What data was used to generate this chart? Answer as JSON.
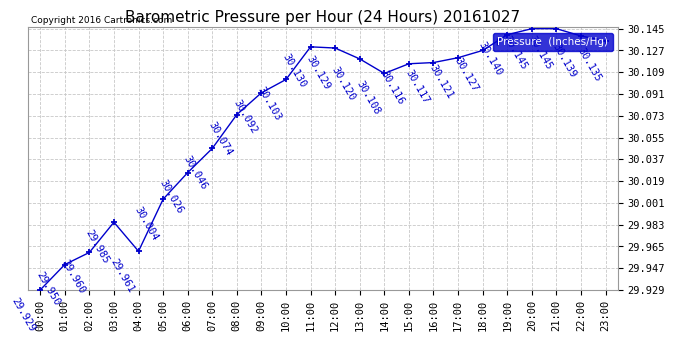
{
  "title": "Barometric Pressure per Hour (24 Hours) 20161027",
  "copyright": "Copyright 2016 Cartronics.com",
  "legend_label": "Pressure  (Inches/Hg)",
  "hours": [
    0,
    1,
    2,
    3,
    4,
    5,
    6,
    7,
    8,
    9,
    10,
    11,
    12,
    13,
    14,
    15,
    16,
    17,
    18,
    19,
    20,
    21,
    22,
    23
  ],
  "pressures": [
    29.929,
    29.95,
    29.96,
    29.985,
    29.961,
    30.004,
    30.026,
    30.046,
    30.074,
    30.092,
    30.103,
    30.13,
    30.129,
    30.12,
    30.108,
    30.116,
    30.117,
    30.121,
    30.127,
    30.14,
    30.145,
    30.145,
    30.139,
    30.135
  ],
  "ylim_min": 29.929,
  "ylim_max": 30.145,
  "yticks": [
    29.929,
    29.947,
    29.965,
    29.983,
    30.001,
    30.019,
    30.037,
    30.055,
    30.073,
    30.091,
    30.109,
    30.127,
    30.145
  ],
  "line_color": "#0000cc",
  "marker_color": "#0000cc",
  "grid_color": "#c8c8c8",
  "background_color": "#ffffff",
  "text_color": "#0000cc",
  "title_color": "#000000",
  "legend_bg": "#0000cc",
  "legend_fg": "#ffffff",
  "label_rotation": -60,
  "label_fontsize": 7.5
}
